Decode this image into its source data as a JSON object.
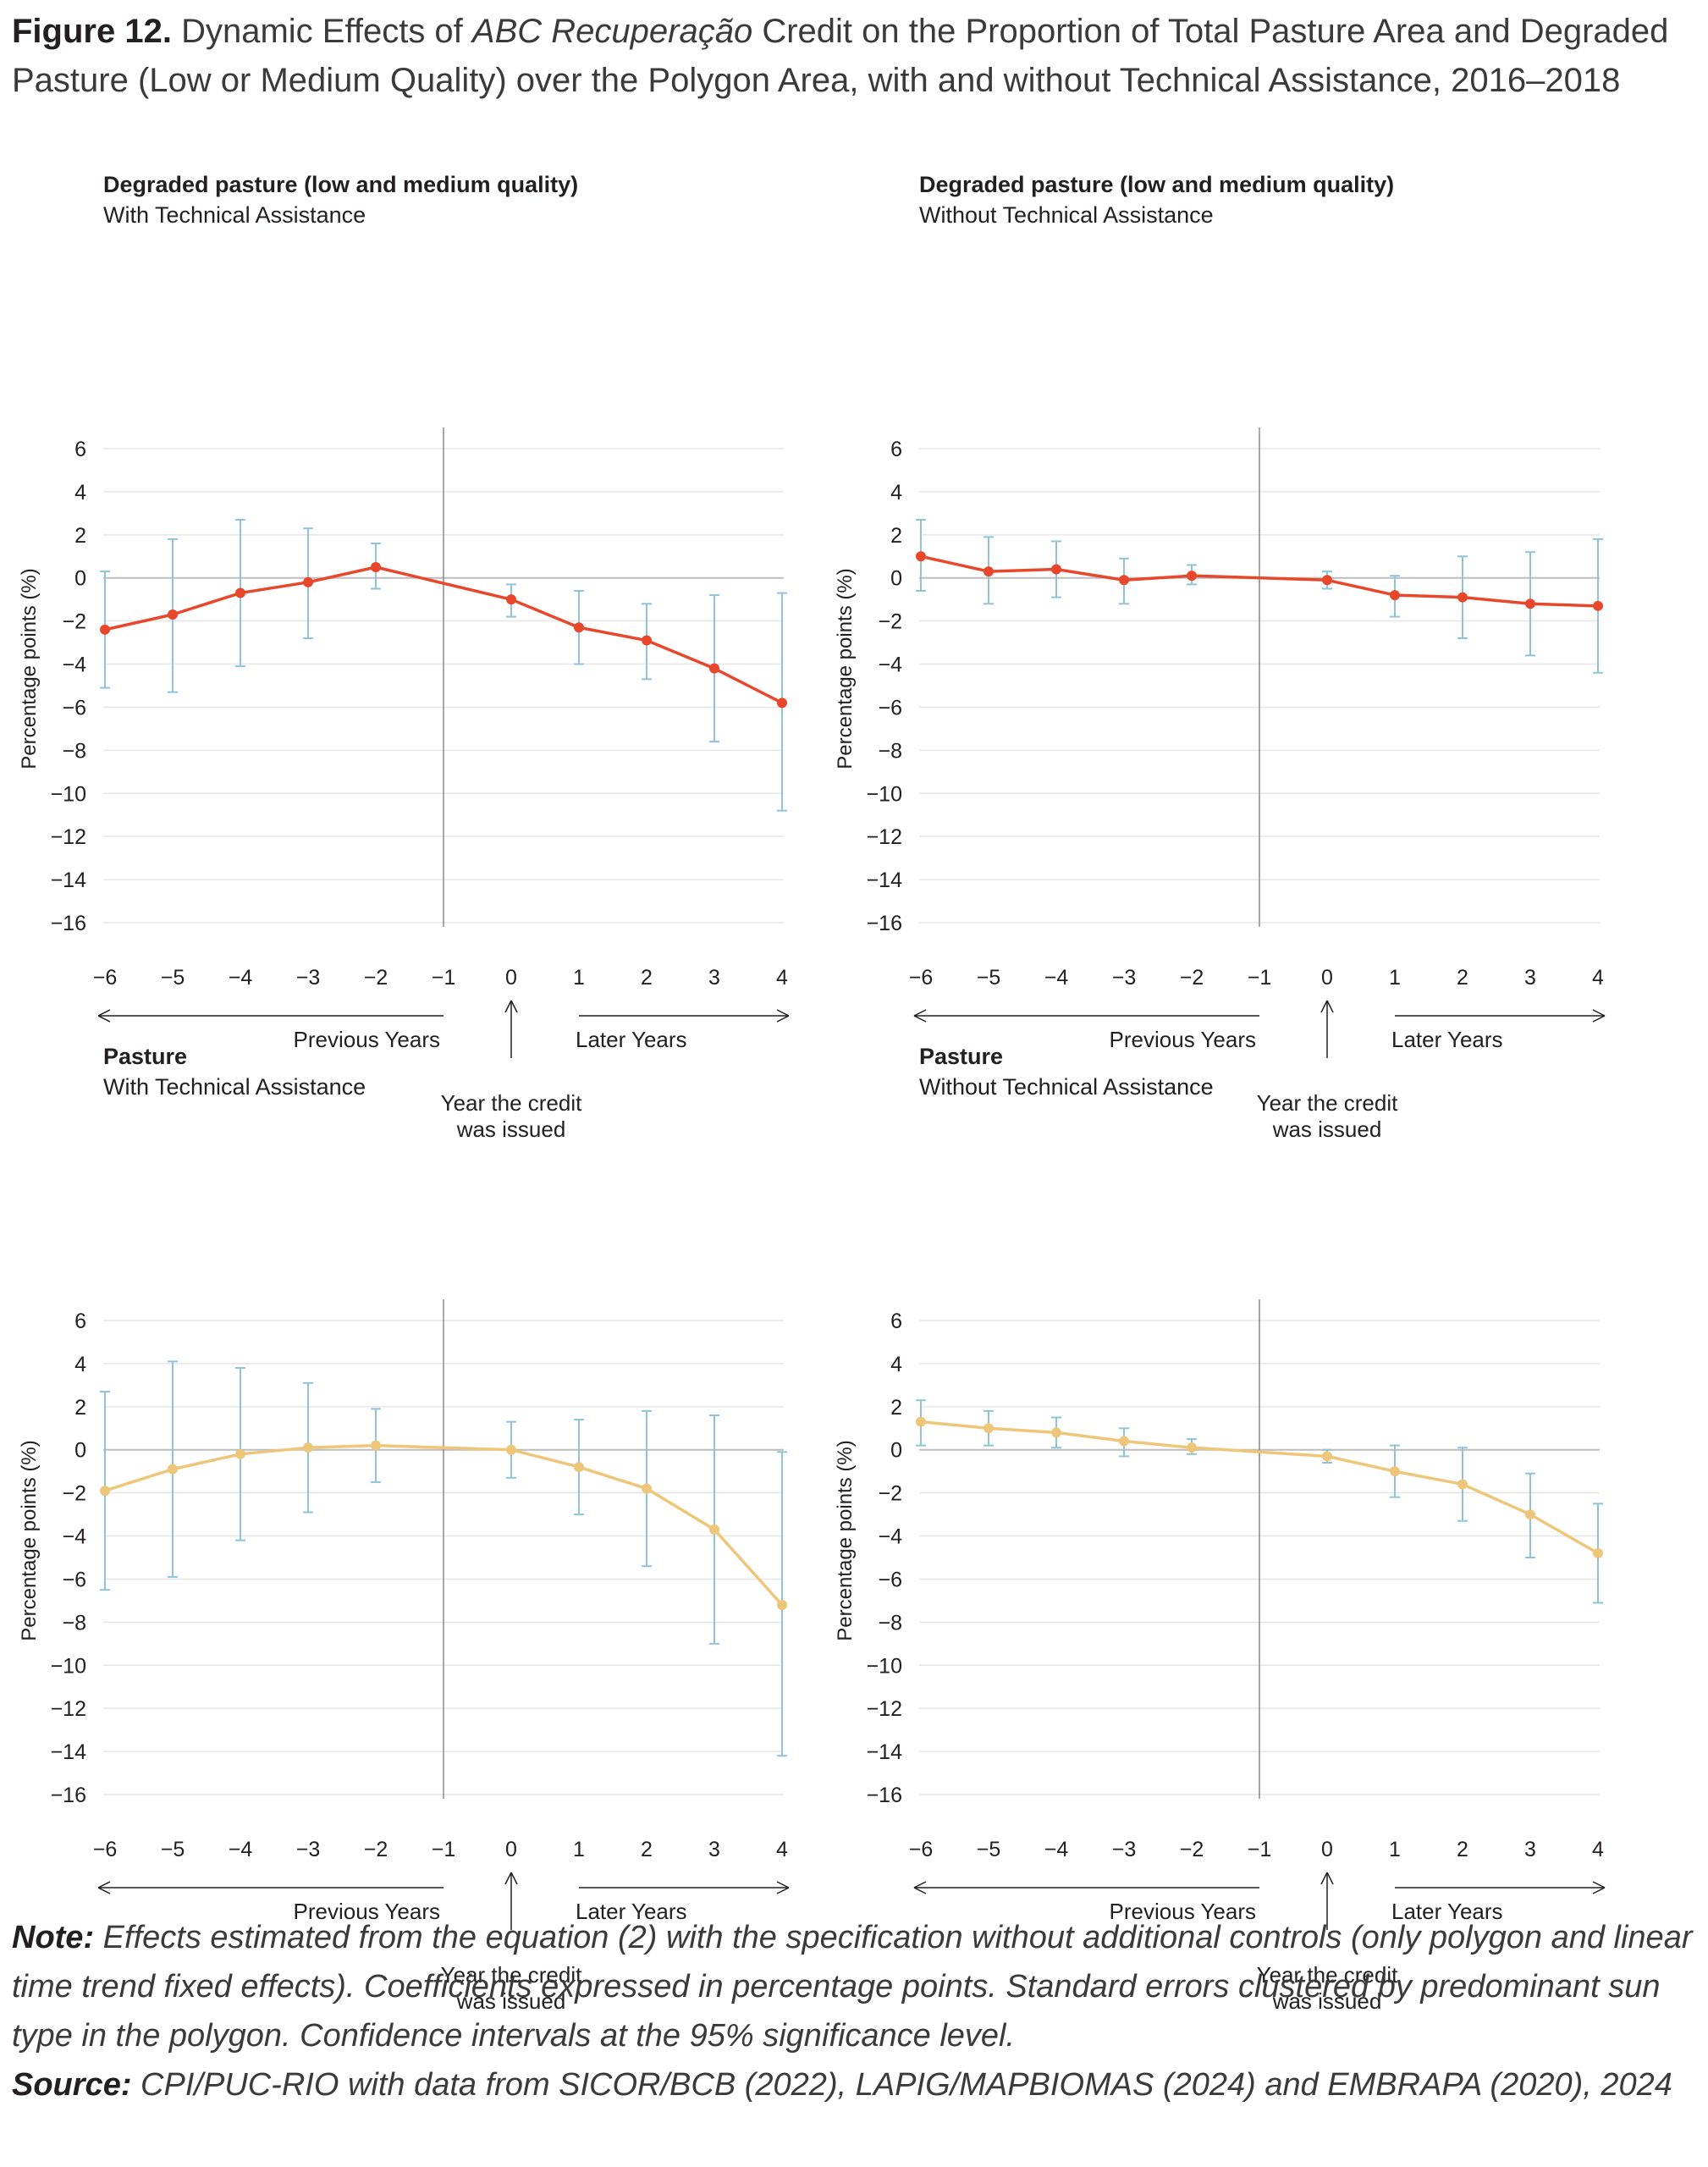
{
  "figure": {
    "label": "Figure 12.",
    "title_part1": "Dynamic Effects of ",
    "title_italic": "ABC Recuperação",
    "title_part2": " Credit on the Proportion of Total Pasture Area and Degraded Pasture (Low or Medium Quality) over the Polygon Area, with and without Technical Assistance, 2016–2018"
  },
  "annotations": {
    "previous_years": "Previous Years",
    "later_years": "Later Years",
    "credit_line1": "Year the credit",
    "credit_line2": "was issued"
  },
  "colors": {
    "degraded": "#e8472b",
    "pasture": "#eec679",
    "error_bar": "#8ec3dd",
    "grid": "#e6e6e6",
    "zero_line": "#bdbdbd"
  },
  "chart_data": [
    {
      "type": "line",
      "title": "Degraded pasture (low and medium quality)",
      "subtitle": "With Technical Assistance",
      "ylabel": "Percentage points (%)",
      "xlabel": "",
      "ylim": [
        -16,
        6
      ],
      "yticks": [
        6,
        4,
        2,
        0,
        -2,
        -4,
        -6,
        -8,
        -10,
        -12,
        -14,
        -16
      ],
      "xticks": [
        -6,
        -5,
        -4,
        -3,
        -2,
        -1,
        0,
        1,
        2,
        3,
        4
      ],
      "color_key": "degraded",
      "event_x": -1,
      "points": [
        {
          "x": -6,
          "y": -2.4,
          "lo": -5.1,
          "hi": 0.3
        },
        {
          "x": -5,
          "y": -1.7,
          "lo": -5.3,
          "hi": 1.8
        },
        {
          "x": -4,
          "y": -0.7,
          "lo": -4.1,
          "hi": 2.7
        },
        {
          "x": -3,
          "y": -0.2,
          "lo": -2.8,
          "hi": 2.3
        },
        {
          "x": -2,
          "y": 0.5,
          "lo": -0.5,
          "hi": 1.6
        },
        {
          "x": 0,
          "y": -1.0,
          "lo": -1.8,
          "hi": -0.3
        },
        {
          "x": 1,
          "y": -2.3,
          "lo": -4.0,
          "hi": -0.6
        },
        {
          "x": 2,
          "y": -2.9,
          "lo": -4.7,
          "hi": -1.2
        },
        {
          "x": 3,
          "y": -4.2,
          "lo": -7.6,
          "hi": -0.8
        },
        {
          "x": 4,
          "y": -5.8,
          "lo": -10.8,
          "hi": -0.7
        }
      ]
    },
    {
      "type": "line",
      "title": "Degraded pasture (low and medium quality)",
      "subtitle": "Without Technical Assistance",
      "ylabel": "Percentage points (%)",
      "xlabel": "",
      "ylim": [
        -16,
        6
      ],
      "yticks": [
        6,
        4,
        2,
        0,
        -2,
        -4,
        -6,
        -8,
        -10,
        -12,
        -14,
        -16
      ],
      "xticks": [
        -6,
        -5,
        -4,
        -3,
        -2,
        -1,
        0,
        1,
        2,
        3,
        4
      ],
      "color_key": "degraded",
      "event_x": -1,
      "points": [
        {
          "x": -6,
          "y": 1.0,
          "lo": -0.6,
          "hi": 2.7
        },
        {
          "x": -5,
          "y": 0.3,
          "lo": -1.2,
          "hi": 1.9
        },
        {
          "x": -4,
          "y": 0.4,
          "lo": -0.9,
          "hi": 1.7
        },
        {
          "x": -3,
          "y": -0.1,
          "lo": -1.2,
          "hi": 0.9
        },
        {
          "x": -2,
          "y": 0.1,
          "lo": -0.3,
          "hi": 0.6
        },
        {
          "x": 0,
          "y": -0.1,
          "lo": -0.5,
          "hi": 0.3
        },
        {
          "x": 1,
          "y": -0.8,
          "lo": -1.8,
          "hi": 0.1
        },
        {
          "x": 2,
          "y": -0.9,
          "lo": -2.8,
          "hi": 1.0
        },
        {
          "x": 3,
          "y": -1.2,
          "lo": -3.6,
          "hi": 1.2
        },
        {
          "x": 4,
          "y": -1.3,
          "lo": -4.4,
          "hi": 1.8
        }
      ]
    },
    {
      "type": "line",
      "title": "Pasture",
      "subtitle": "With Technical Assistance",
      "ylabel": "Percentage points (%)",
      "xlabel": "",
      "ylim": [
        -16,
        6
      ],
      "yticks": [
        6,
        4,
        2,
        0,
        -2,
        -4,
        -6,
        -8,
        -10,
        -12,
        -14,
        -16
      ],
      "xticks": [
        -6,
        -5,
        -4,
        -3,
        -2,
        -1,
        0,
        1,
        2,
        3,
        4
      ],
      "color_key": "pasture",
      "event_x": -1,
      "points": [
        {
          "x": -6,
          "y": -1.9,
          "lo": -6.5,
          "hi": 2.7
        },
        {
          "x": -5,
          "y": -0.9,
          "lo": -5.9,
          "hi": 4.1
        },
        {
          "x": -4,
          "y": -0.2,
          "lo": -4.2,
          "hi": 3.8
        },
        {
          "x": -3,
          "y": 0.1,
          "lo": -2.9,
          "hi": 3.1
        },
        {
          "x": -2,
          "y": 0.2,
          "lo": -1.5,
          "hi": 1.9
        },
        {
          "x": 0,
          "y": 0.0,
          "lo": -1.3,
          "hi": 1.3
        },
        {
          "x": 1,
          "y": -0.8,
          "lo": -3.0,
          "hi": 1.4
        },
        {
          "x": 2,
          "y": -1.8,
          "lo": -5.4,
          "hi": 1.8
        },
        {
          "x": 3,
          "y": -3.7,
          "lo": -9.0,
          "hi": 1.6
        },
        {
          "x": 4,
          "y": -7.2,
          "lo": -14.2,
          "hi": -0.1
        }
      ]
    },
    {
      "type": "line",
      "title": "Pasture",
      "subtitle": "Without Technical Assistance",
      "ylabel": "Percentage points (%)",
      "xlabel": "",
      "ylim": [
        -16,
        6
      ],
      "yticks": [
        6,
        4,
        2,
        0,
        -2,
        -4,
        -6,
        -8,
        -10,
        -12,
        -14,
        -16
      ],
      "xticks": [
        -6,
        -5,
        -4,
        -3,
        -2,
        -1,
        0,
        1,
        2,
        3,
        4
      ],
      "color_key": "pasture",
      "event_x": -1,
      "points": [
        {
          "x": -6,
          "y": 1.3,
          "lo": 0.2,
          "hi": 2.3
        },
        {
          "x": -5,
          "y": 1.0,
          "lo": 0.2,
          "hi": 1.8
        },
        {
          "x": -4,
          "y": 0.8,
          "lo": 0.1,
          "hi": 1.5
        },
        {
          "x": -3,
          "y": 0.4,
          "lo": -0.3,
          "hi": 1.0
        },
        {
          "x": -2,
          "y": 0.1,
          "lo": -0.2,
          "hi": 0.5
        },
        {
          "x": 0,
          "y": -0.3,
          "lo": -0.6,
          "hi": 0.0
        },
        {
          "x": 1,
          "y": -1.0,
          "lo": -2.2,
          "hi": 0.2
        },
        {
          "x": 2,
          "y": -1.6,
          "lo": -3.3,
          "hi": 0.1
        },
        {
          "x": 3,
          "y": -3.0,
          "lo": -5.0,
          "hi": -1.1
        },
        {
          "x": 4,
          "y": -4.8,
          "lo": -7.1,
          "hi": -2.5
        }
      ]
    }
  ],
  "notes": {
    "note_label": "Note:",
    "note_text": " Effects estimated from the equation (2) with the specification without additional controls (only polygon and linear time trend fixed effects). Coefficients expressed in percentage points. Standard errors clustered by predominant sun type in the polygon. Confidence intervals at the 95% significance level.",
    "source_label": "Source:",
    "source_text": " CPI/PUC-RIO with data from SICOR/BCB (2022), LAPIG/MAPBIOMAS (2024) and EMBRAPA (2020), 2024"
  }
}
